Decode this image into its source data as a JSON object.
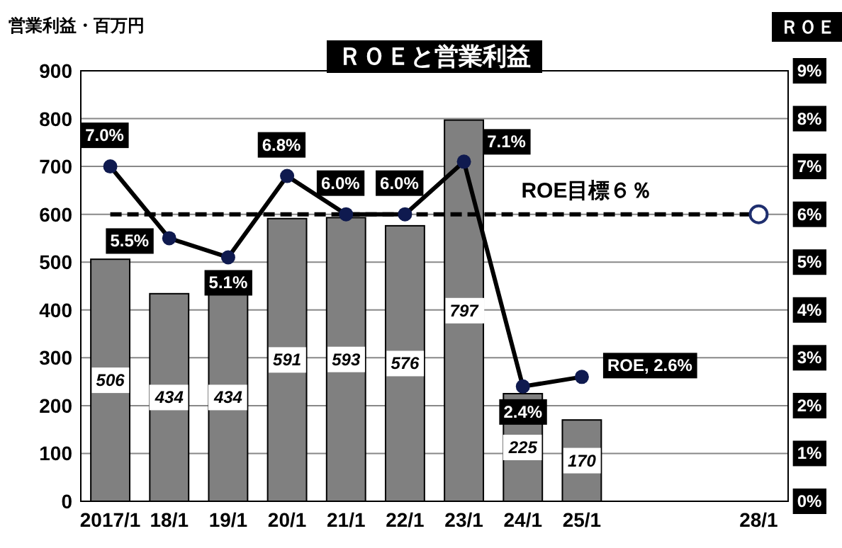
{
  "chart_data": {
    "type": "bar",
    "title": "ＲＯＥと営業利益",
    "ylabel": "営業利益・百万円",
    "y2label": "ＲＯＥ",
    "categories": [
      "2017/1",
      "18/1",
      "19/1",
      "20/1",
      "21/1",
      "22/1",
      "23/1",
      "24/1",
      "25/1",
      null,
      null,
      "28/1"
    ],
    "ylim": [
      0,
      900
    ],
    "yticks": [
      0,
      100,
      200,
      300,
      400,
      500,
      600,
      700,
      800,
      900
    ],
    "y2lim": [
      0,
      9
    ],
    "y2ticks": [
      {
        "value": 0,
        "label": "0%"
      },
      {
        "value": 1,
        "label": "1%"
      },
      {
        "value": 2,
        "label": "2%"
      },
      {
        "value": 3,
        "label": "3%"
      },
      {
        "value": 4,
        "label": "4%"
      },
      {
        "value": 5,
        "label": "5%"
      },
      {
        "value": 6,
        "label": "6%"
      },
      {
        "value": 7,
        "label": "7%"
      },
      {
        "value": 8,
        "label": "8%"
      },
      {
        "value": 9,
        "label": "9%"
      }
    ],
    "grid": "y",
    "series": [
      {
        "color": "#808080",
        "values": [
          506,
          434,
          434,
          591,
          593,
          576,
          797,
          225,
          170,
          null,
          null,
          null
        ],
        "value_labels": [
          "506",
          "434",
          "434",
          "591",
          "593",
          "576",
          "797",
          "225",
          "170",
          null,
          null,
          null
        ]
      },
      {
        "type": "line",
        "axis": "y2",
        "color": "#000000",
        "marker": "circle",
        "values": [
          7.0,
          5.5,
          5.1,
          6.8,
          6.0,
          6.0,
          7.1,
          2.4,
          2.6,
          null,
          null,
          null
        ],
        "value_labels": [
          "7.0%",
          "5.5%",
          "5.1%",
          "6.8%",
          "6.0%",
          "6.0%",
          "7.1%",
          "2.4%",
          "ROE, 2.6%",
          null,
          null,
          null
        ]
      },
      {
        "type": "scatter",
        "axis": "y2",
        "color": "#1f2f6f",
        "marker": "circle",
        "values": [
          null,
          null,
          null,
          null,
          null,
          null,
          null,
          null,
          null,
          null,
          null,
          6
        ]
      }
    ],
    "ref_lines": [
      {
        "axis": "y2",
        "value": 6,
        "label": "ROE目標６％",
        "line_style": "dashed",
        "color": "#000000"
      }
    ]
  }
}
